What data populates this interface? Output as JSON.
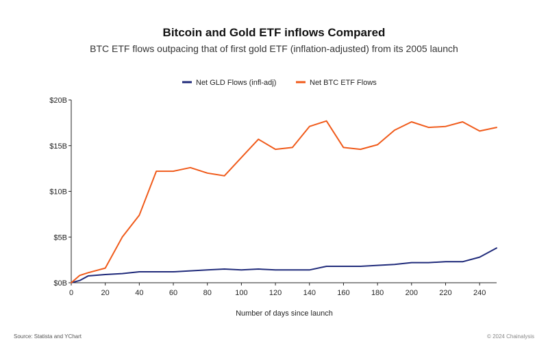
{
  "source": "Source: Statista and YChart",
  "copyright": "© 2024 Chainalysis",
  "colors": {
    "gld": "#1f2a7a",
    "btc": "#f05a1a",
    "axis": "#222222",
    "text": "#222222"
  },
  "chart_data": {
    "type": "line",
    "title": "Bitcoin and Gold ETF inflows Compared",
    "subtitle": "BTC ETF flows outpacing that of first gold ETF (inflation-adjusted) from its 2005 launch",
    "xlabel": "Number of days since launch",
    "ylabel": "",
    "xlim": [
      0,
      250
    ],
    "ylim": [
      0,
      20
    ],
    "grid": false,
    "legend_position": "top-center",
    "x_ticks": [
      0,
      20,
      40,
      60,
      80,
      100,
      120,
      140,
      160,
      180,
      200,
      220,
      240
    ],
    "x_tick_labels": [
      "0",
      "20",
      "40",
      "60",
      "80",
      "100",
      "120",
      "140",
      "160",
      "180",
      "200",
      "220",
      "240"
    ],
    "y_ticks": [
      0,
      5,
      10,
      15,
      20
    ],
    "y_tick_labels": [
      "$0B",
      "$5B",
      "$10B",
      "$15B",
      "$20B"
    ],
    "series": [
      {
        "name": "Net GLD Flows (infl-adj)",
        "color": "#1f2a7a",
        "points": [
          [
            0,
            0
          ],
          [
            5,
            0.25
          ],
          [
            10,
            0.75
          ],
          [
            20,
            0.9
          ],
          [
            30,
            1.0
          ],
          [
            40,
            1.2
          ],
          [
            50,
            1.2
          ],
          [
            60,
            1.2
          ],
          [
            70,
            1.3
          ],
          [
            80,
            1.4
          ],
          [
            90,
            1.5
          ],
          [
            100,
            1.4
          ],
          [
            110,
            1.5
          ],
          [
            120,
            1.4
          ],
          [
            130,
            1.4
          ],
          [
            140,
            1.4
          ],
          [
            150,
            1.8
          ],
          [
            160,
            1.8
          ],
          [
            170,
            1.8
          ],
          [
            180,
            1.9
          ],
          [
            190,
            2.0
          ],
          [
            200,
            2.2
          ],
          [
            210,
            2.2
          ],
          [
            220,
            2.3
          ],
          [
            230,
            2.3
          ],
          [
            240,
            2.8
          ],
          [
            250,
            3.8
          ]
        ]
      },
      {
        "name": "Net BTC ETF Flows",
        "color": "#f05a1a",
        "points": [
          [
            0,
            0
          ],
          [
            5,
            0.8
          ],
          [
            10,
            1.1
          ],
          [
            20,
            1.6
          ],
          [
            30,
            5.0
          ],
          [
            40,
            7.4
          ],
          [
            50,
            12.2
          ],
          [
            60,
            12.2
          ],
          [
            70,
            12.6
          ],
          [
            80,
            12.0
          ],
          [
            90,
            11.7
          ],
          [
            100,
            13.7
          ],
          [
            110,
            15.7
          ],
          [
            120,
            14.6
          ],
          [
            130,
            14.8
          ],
          [
            140,
            17.1
          ],
          [
            150,
            17.7
          ],
          [
            160,
            14.8
          ],
          [
            170,
            14.6
          ],
          [
            180,
            15.1
          ],
          [
            190,
            16.7
          ],
          [
            200,
            17.6
          ],
          [
            210,
            17.0
          ],
          [
            220,
            17.1
          ],
          [
            230,
            17.6
          ],
          [
            240,
            16.6
          ],
          [
            250,
            17.0
          ]
        ]
      }
    ]
  }
}
